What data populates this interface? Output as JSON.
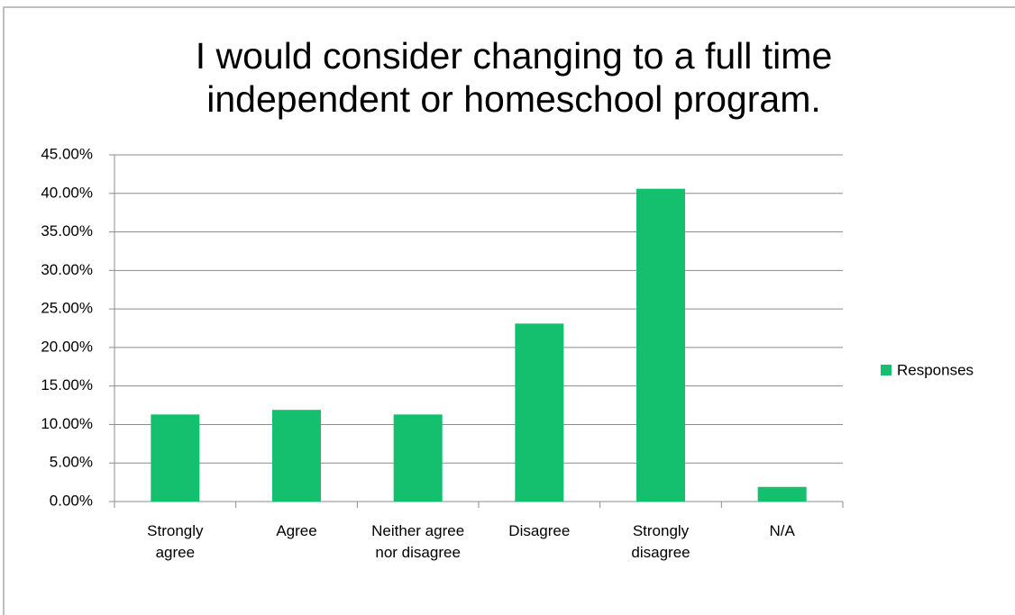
{
  "chart_data": {
    "type": "bar",
    "title": "I would consider changing to a full time independent or homeschool program.",
    "categories": [
      "Strongly agree",
      "Agree",
      "Neither agree nor disagree",
      "Disagree",
      "Strongly disagree",
      "N/A"
    ],
    "series": [
      {
        "name": "Responses",
        "color": "#14bf6e",
        "values": [
          11.3,
          11.9,
          11.3,
          23.1,
          40.6,
          1.9
        ]
      }
    ],
    "ylim": [
      0,
      45
    ],
    "yticks": [
      {
        "value": 0,
        "label": "0.00%"
      },
      {
        "value": 5,
        "label": "5.00%"
      },
      {
        "value": 10,
        "label": "10.00%"
      },
      {
        "value": 15,
        "label": "15.00%"
      },
      {
        "value": 20,
        "label": "20.00%"
      },
      {
        "value": 25,
        "label": "25.00%"
      },
      {
        "value": 30,
        "label": "30.00%"
      },
      {
        "value": 35,
        "label": "35.00%"
      },
      {
        "value": 40,
        "label": "40.00%"
      },
      {
        "value": 45,
        "label": "45.00%"
      }
    ],
    "grid": true,
    "legend": "right"
  }
}
